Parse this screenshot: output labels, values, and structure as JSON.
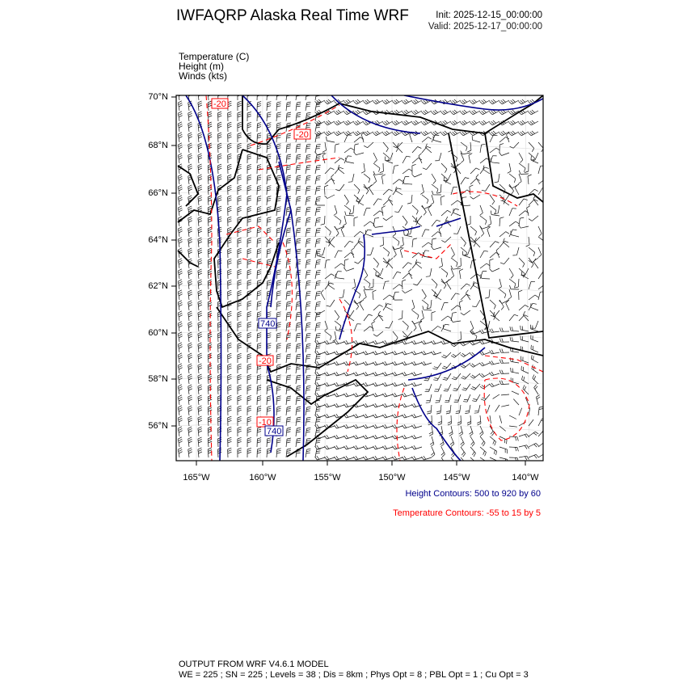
{
  "header": {
    "title": "IWFAQRP Alaska Real Time WRF",
    "init": "Init: 2025-12-15_00:00:00",
    "valid": "Valid: 2025-12-17_00:00:00"
  },
  "fields": [
    "Temperature   (C)",
    "Height   (m)",
    "Winds   (kts)"
  ],
  "map": {
    "lat_ticks": [
      "70°N",
      "68°N",
      "66°N",
      "64°N",
      "62°N",
      "60°N",
      "58°N",
      "56°N"
    ],
    "lon_ticks": [
      "165°W",
      "160°W",
      "155°W",
      "150°W",
      "145°W",
      "140°W"
    ],
    "contour_labels": {
      "temperature": [
        "-20",
        "-20",
        "-20",
        "-10"
      ],
      "height": [
        "740",
        "740"
      ]
    },
    "colors": {
      "height": "#00008b",
      "temperature": "#ff0000",
      "coast": "#000000",
      "barbs": "#000000"
    }
  },
  "legend": {
    "height_contours": "Height Contours: 500 to 920 by 60",
    "temperature_contours": "Temperature Contours: -55 to 15 by 5"
  },
  "footer": {
    "line1": "OUTPUT FROM WRF V4.6.1 MODEL",
    "line2": "WE = 225 ; SN = 225 ; Levels = 38 ; Dis = 8km ; Phys Opt = 8 ; PBL Opt = 1 ; Cu Opt = 3"
  }
}
